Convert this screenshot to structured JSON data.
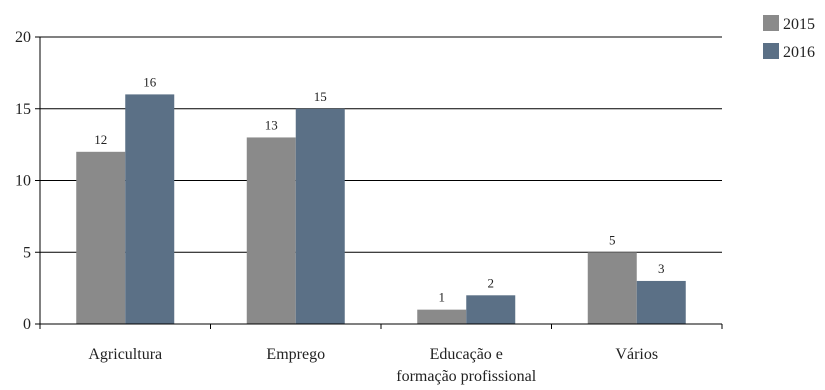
{
  "chart_data": {
    "type": "bar",
    "categories": [
      [
        "Agricultura"
      ],
      [
        "Emprego"
      ],
      [
        "Educação e",
        "formação profissional"
      ],
      [
        "Vários"
      ]
    ],
    "series": [
      {
        "name": "2015",
        "values": [
          12,
          13,
          1,
          5
        ],
        "labels": [
          "12",
          "13",
          "1",
          "5"
        ],
        "color": "#8a8a8a"
      },
      {
        "name": "2016",
        "values": [
          16,
          15,
          2,
          3
        ],
        "labels": [
          "16",
          "15",
          "2",
          "3"
        ],
        "color": "#5b7086"
      }
    ],
    "yticks": [
      0,
      5,
      10,
      15,
      20
    ],
    "ylim": [
      0,
      20
    ],
    "grid": true,
    "legend_position": "top-right"
  }
}
